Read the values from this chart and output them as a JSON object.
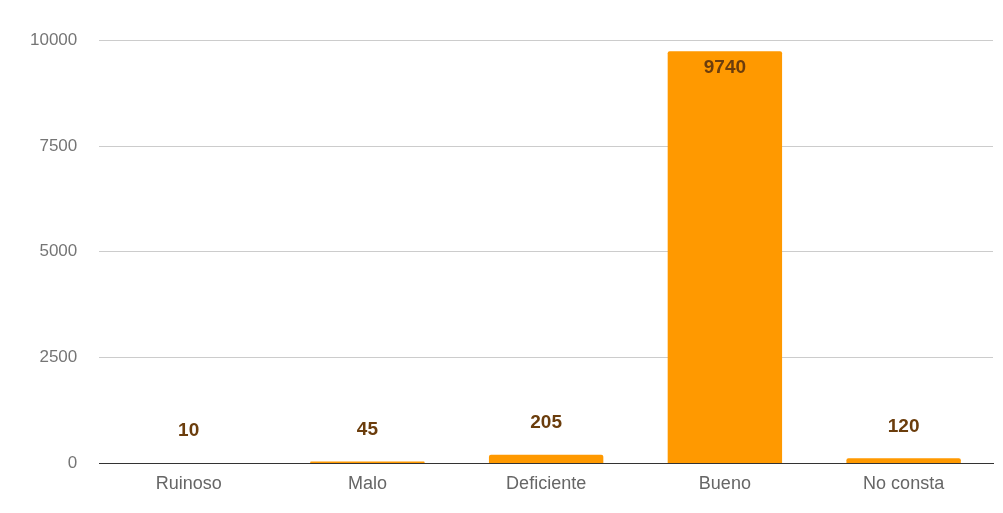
{
  "chart_data": {
    "type": "bar",
    "categories": [
      "Ruinoso",
      "Malo",
      "Deficiente",
      "Bueno",
      "No consta"
    ],
    "values": [
      10,
      45,
      205,
      9740,
      120
    ],
    "color": "#ff9900",
    "ylim": [
      0,
      10000
    ],
    "yticks": [
      0,
      2500,
      5000,
      7500,
      10000
    ],
    "grid": "y",
    "data_labels": true,
    "legend": false
  }
}
